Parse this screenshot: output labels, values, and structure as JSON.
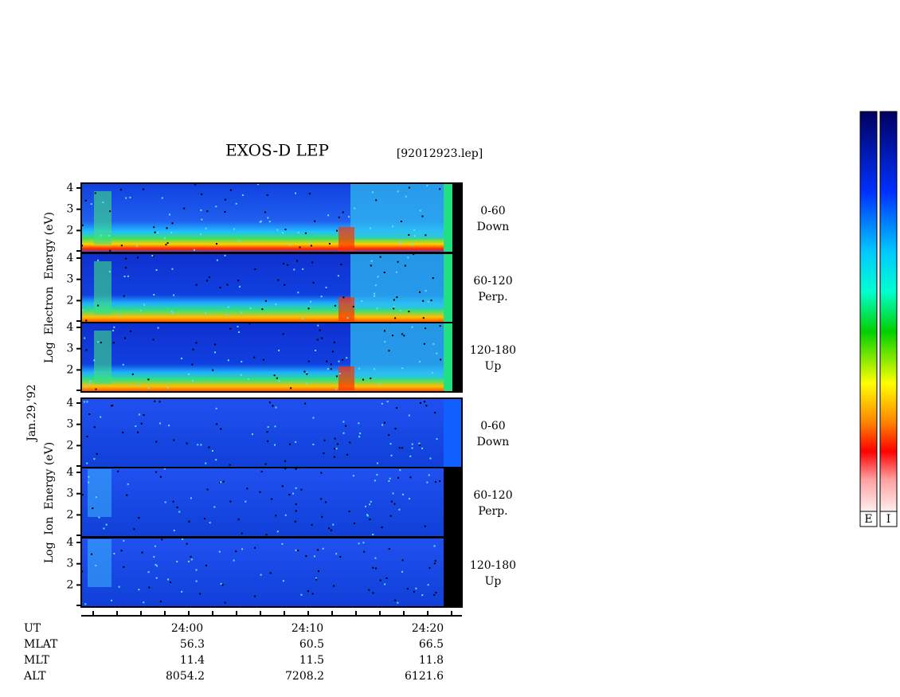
{
  "title": "EXOS-D LEP",
  "file": "[92012923.lep]",
  "date": "Jan.29,'92",
  "groups": [
    {
      "ylabel": "Log  Electron  Energy (eV)",
      "panels": [
        {
          "angle": "0-60",
          "dir": "Down"
        },
        {
          "angle": "60-120",
          "dir": "Perp."
        },
        {
          "angle": "120-180",
          "dir": "Up"
        }
      ]
    },
    {
      "ylabel": "Log  Ion  Energy (eV)",
      "panels": [
        {
          "angle": "0-60",
          "dir": "Down"
        },
        {
          "angle": "60-120",
          "dir": "Perp."
        },
        {
          "angle": "120-180",
          "dir": "Up"
        }
      ]
    }
  ],
  "yticks": [
    2,
    3,
    4
  ],
  "ephemeris": [
    {
      "label": "UT",
      "values": [
        "24:00",
        "24:10",
        "24:20"
      ]
    },
    {
      "label": "MLAT",
      "values": [
        56.3,
        60.5,
        66.5
      ]
    },
    {
      "label": "MLT",
      "values": [
        11.4,
        11.5,
        11.8
      ]
    },
    {
      "label": "ALT",
      "values": [
        8054.2,
        7208.2,
        6121.6
      ]
    }
  ],
  "colorbars": [
    "E",
    "I"
  ]
}
